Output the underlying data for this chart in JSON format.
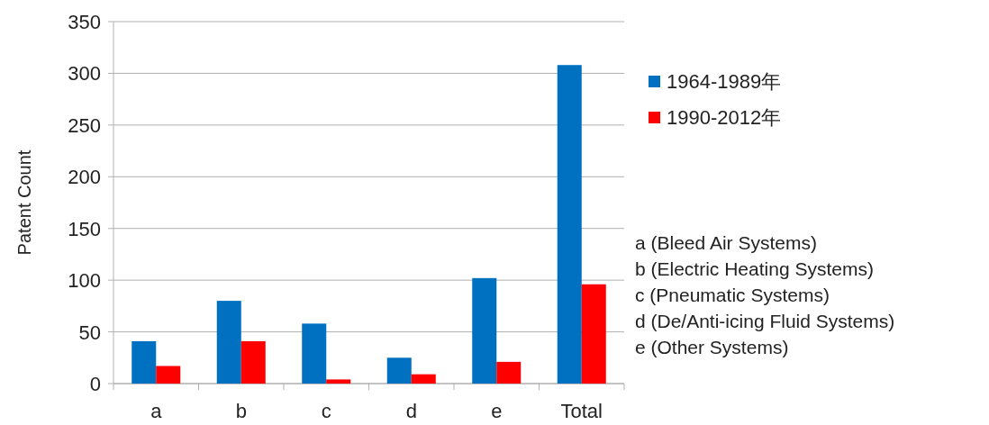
{
  "chart_data": {
    "type": "bar",
    "ylabel": "Patent Count",
    "categories": [
      "a",
      "b",
      "c",
      "d",
      "e",
      "Total"
    ],
    "series": [
      {
        "name": "1964-1989年",
        "color": "#0070c0",
        "values": [
          41,
          80,
          58,
          25,
          102,
          308
        ]
      },
      {
        "name": "1990-2012年",
        "color": "#ff0000",
        "values": [
          17,
          41,
          4,
          9,
          21,
          96
        ]
      }
    ],
    "ylim": [
      0,
      350
    ],
    "yticks": [
      0,
      50,
      100,
      150,
      200,
      250,
      300,
      350
    ],
    "grid": "y",
    "legend": "top right",
    "annotations": [
      "a (Bleed Air Systems)",
      "b (Electric Heating Systems)",
      "c (Pneumatic Systems)",
      "d (De/Anti-icing Fluid Systems)",
      "e (Other Systems)"
    ]
  }
}
